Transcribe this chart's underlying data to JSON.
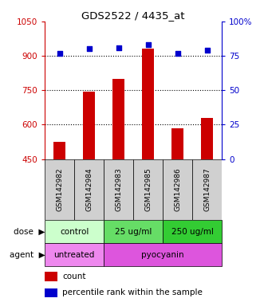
{
  "title": "GDS2522 / 4435_at",
  "categories": [
    "GSM142982",
    "GSM142984",
    "GSM142983",
    "GSM142985",
    "GSM142986",
    "GSM142987"
  ],
  "bar_values": [
    527,
    743,
    800,
    930,
    585,
    628
  ],
  "scatter_values": [
    77,
    80,
    81,
    83,
    77,
    79
  ],
  "ylim_left": [
    450,
    1050
  ],
  "ylim_right": [
    0,
    100
  ],
  "yticks_left": [
    450,
    600,
    750,
    900,
    1050
  ],
  "yticks_right": [
    0,
    25,
    50,
    75,
    100
  ],
  "ytick_right_labels": [
    "0",
    "25",
    "50",
    "75",
    "100%"
  ],
  "bar_color": "#cc0000",
  "scatter_color": "#0000cc",
  "dose_colors": [
    "#ccffcc",
    "#66dd66",
    "#33cc33"
  ],
  "dose_labels": [
    "control",
    "25 ug/ml",
    "250 ug/ml"
  ],
  "agent_colors": [
    "#ee88ee",
    "#dd55dd"
  ],
  "agent_labels": [
    "untreated",
    "pyocyanin"
  ],
  "legend_count": "count",
  "legend_pct": "percentile rank within the sample",
  "label_color_left": "#cc0000",
  "label_color_right": "#0000cc",
  "grid_yticks": [
    600,
    750,
    900
  ]
}
